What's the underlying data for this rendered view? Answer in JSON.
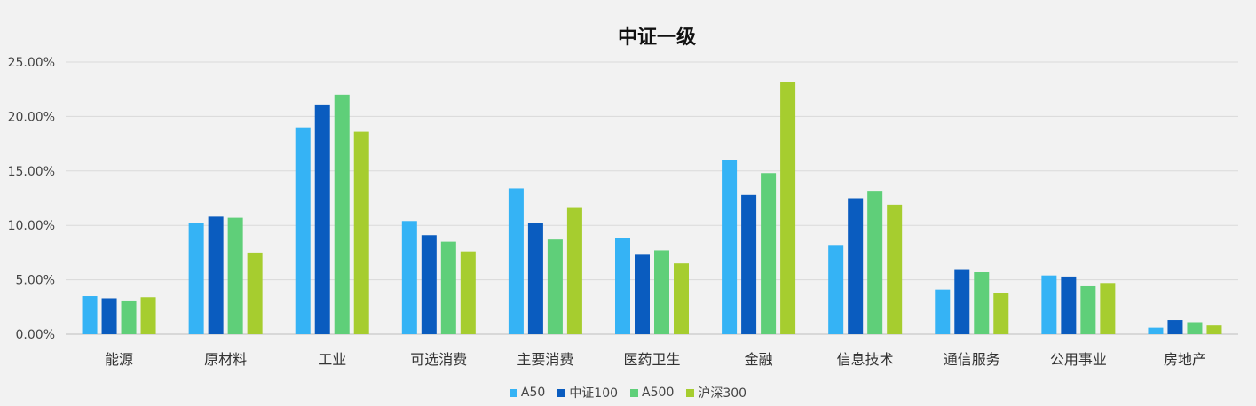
{
  "chart_data": {
    "type": "bar",
    "title": "中证一级",
    "xlabel": "",
    "ylabel": "",
    "ylim": [
      0,
      25
    ],
    "y_tick_labels": [
      "0.00%",
      "5.00%",
      "10.00%",
      "15.00%",
      "20.00%",
      "25.00%"
    ],
    "y_ticks": [
      0,
      5,
      10,
      15,
      20,
      25
    ],
    "grid": true,
    "legend_position": "bottom",
    "categories": [
      "能源",
      "原材料",
      "工业",
      "可选消费",
      "主要消费",
      "医药卫生",
      "金融",
      "信息技术",
      "通信服务",
      "公用事业",
      "房地产"
    ],
    "series": [
      {
        "name": "A50",
        "color": "#35b3f5",
        "values": [
          3.5,
          10.2,
          19.0,
          10.4,
          13.4,
          8.8,
          16.0,
          8.2,
          4.1,
          5.4,
          0.6
        ]
      },
      {
        "name": "中证100",
        "color": "#0a5cbf",
        "values": [
          3.3,
          10.8,
          21.1,
          9.1,
          10.2,
          7.3,
          12.8,
          12.5,
          5.9,
          5.3,
          1.3
        ]
      },
      {
        "name": "A500",
        "color": "#5fcf79",
        "values": [
          3.1,
          10.7,
          22.0,
          8.5,
          8.7,
          7.7,
          14.8,
          13.1,
          5.7,
          4.4,
          1.1
        ]
      },
      {
        "name": "沪深300",
        "color": "#a6cd2f",
        "values": [
          3.4,
          7.5,
          18.6,
          7.6,
          11.6,
          6.5,
          23.2,
          11.9,
          3.8,
          4.7,
          0.8
        ]
      }
    ]
  }
}
